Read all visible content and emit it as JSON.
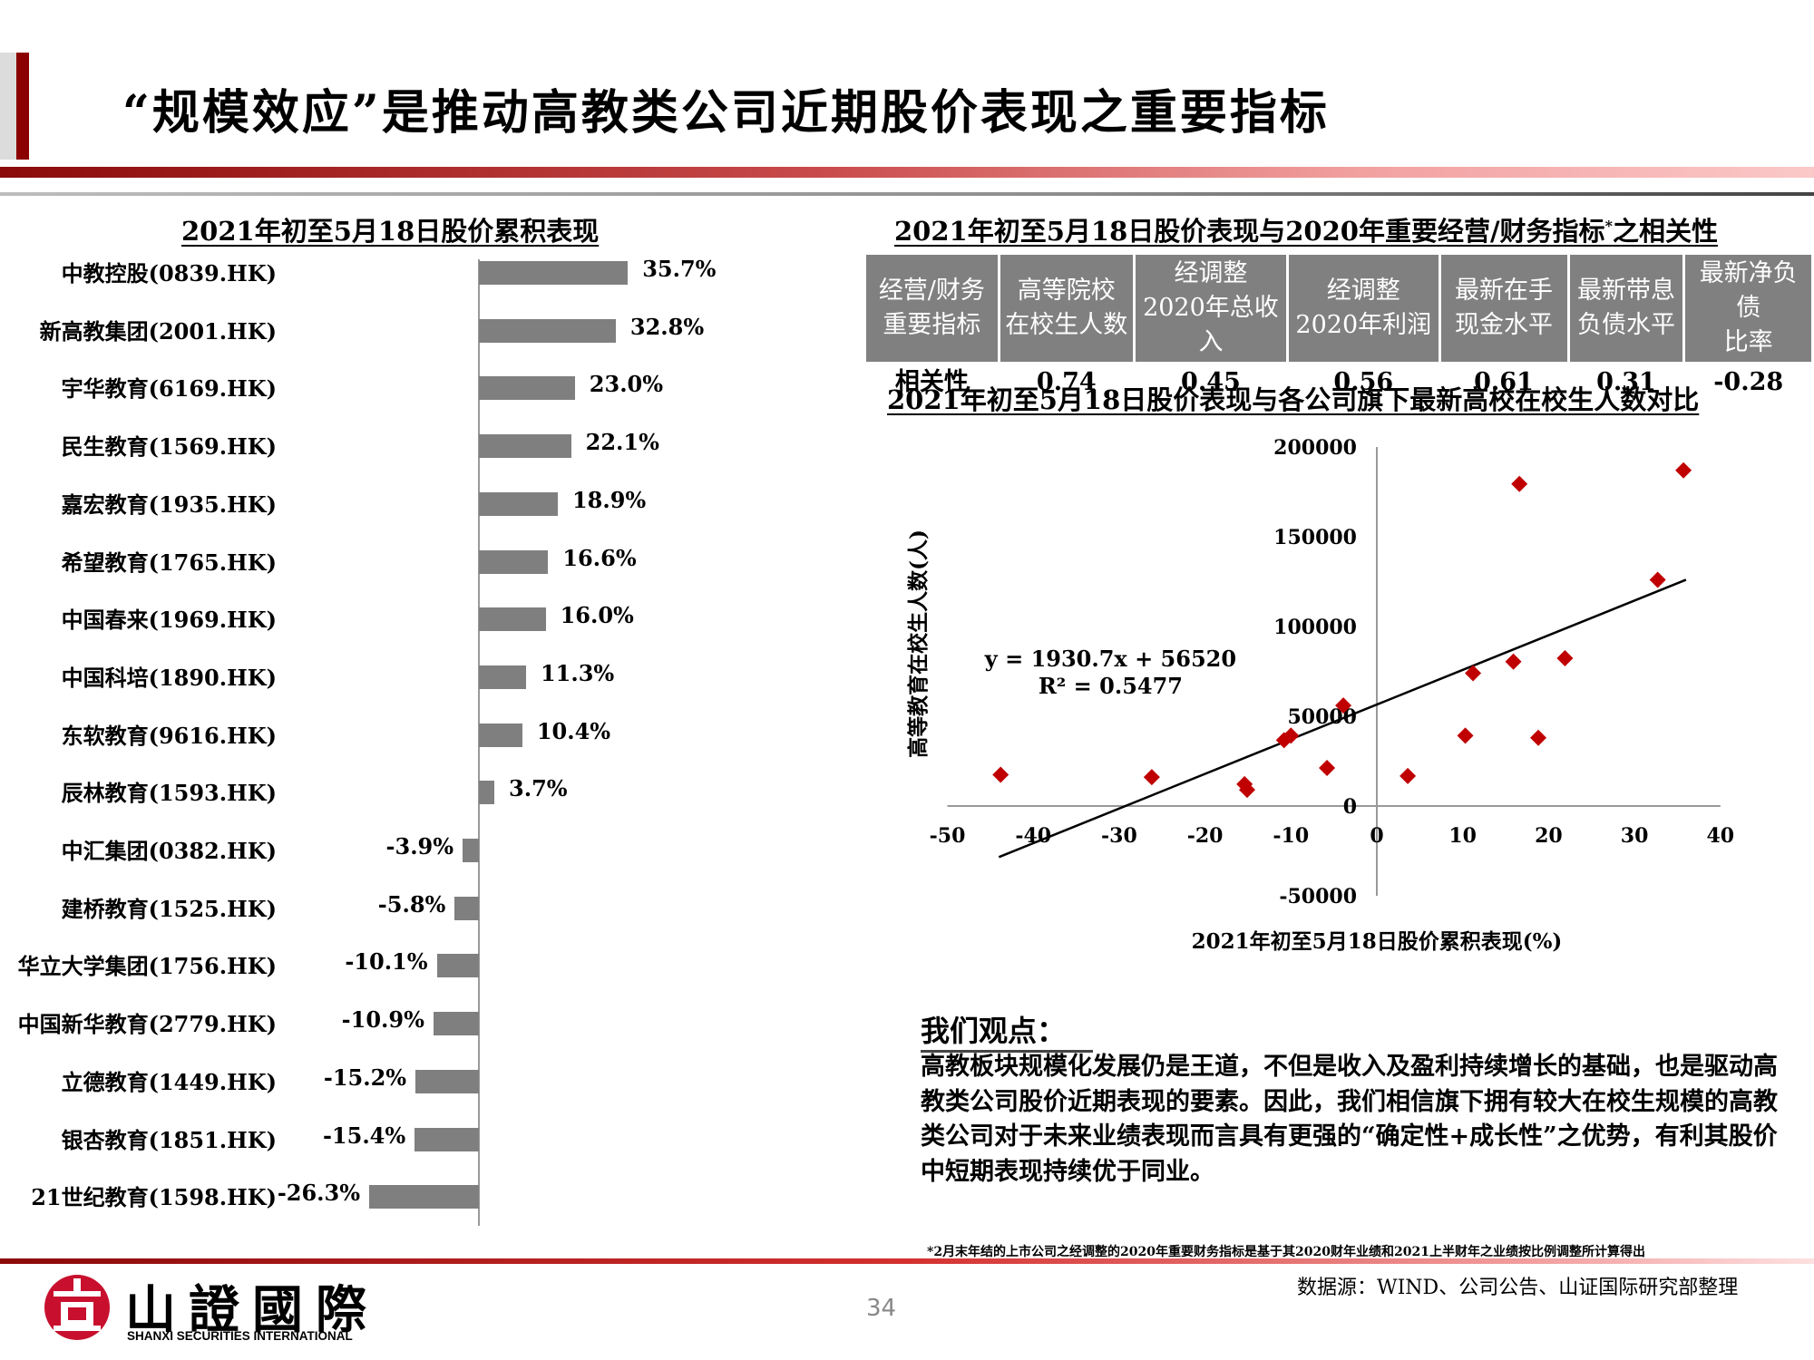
{
  "page": {
    "title": "“规模效应”是推动高教类公司近期股价表现之重要指标",
    "page_number": "34",
    "footnote": "*2月末年结的上市公司之经调整的2020年重要财务指标是基于其2020财年业绩和2021上半财年之业绩按比例调整所计算得出",
    "source": "数据源：WIND、公司公告、山证国际研究部整理",
    "logo": {
      "cn": "山證國際",
      "en": "SHANXI SECURITIES INTERNATIONAL"
    },
    "colors": {
      "brand_red": "#8b0000",
      "bar_grey": "#7f7f7f",
      "marker_red": "#c00000",
      "header_grey": "#808080"
    }
  },
  "correlation_table": {
    "title": "2021年初至5月18日股价表现与2020年重要经营/财务指标*之相关性",
    "headers": [
      [
        "经营/财务",
        "重要指标"
      ],
      [
        "高等院校",
        "在校生人数"
      ],
      [
        "经调整",
        "2020年总收入"
      ],
      [
        "经调整",
        "2020年利润"
      ],
      [
        "最新在手",
        "现金水平"
      ],
      [
        "最新带息",
        "负债水平"
      ],
      [
        "最新净负债",
        "比率"
      ]
    ],
    "row_label": "相关性",
    "values": [
      "0.74",
      "0.45",
      "0.56",
      "0.61",
      "0.31",
      "-0.28"
    ]
  },
  "opinion": {
    "title": "我们观点：",
    "body": "高教板块规模化发展仍是王道，不但是收入及盈利持续增长的基础，也是驱动高教类公司股价近期表现的要素。因此，我们相信旗下拥有较大在校生规模的高教类公司对于未来业绩表现而言具有更强的“确定性+成长性”之优势，有利其股价中短期表现持续优于同业。"
  },
  "chart_data": [
    {
      "type": "bar",
      "orientation": "horizontal",
      "title": "2021年初至5月18日股价累积表现",
      "categories": [
        "中教控股(0839.HK)",
        "新高教集团(2001.HK)",
        "宇华教育(6169.HK)",
        "民生教育(1569.HK)",
        "嘉宏教育(1935.HK)",
        "希望教育(1765.HK)",
        "中国春来(1969.HK)",
        "中国科培(1890.HK)",
        "东软教育(9616.HK)",
        "辰林教育(1593.HK)",
        "中汇集团(0382.HK)",
        "建桥教育(1525.HK)",
        "华立大学集团(1756.HK)",
        "中国新华教育(2779.HK)",
        "立德教育(1449.HK)",
        "银杏教育(1851.HK)",
        "21世纪教育(1598.HK)"
      ],
      "values": [
        35.7,
        32.8,
        23.0,
        22.1,
        18.9,
        16.6,
        16.0,
        11.3,
        10.4,
        3.7,
        -3.9,
        -5.8,
        -10.1,
        -10.9,
        -15.2,
        -15.4,
        -26.3
      ],
      "labels": [
        "35.7%",
        "32.8%",
        "23.0%",
        "22.1%",
        "18.9%",
        "16.6%",
        "16.0%",
        "11.3%",
        "10.4%",
        "3.7%",
        "-3.9%",
        "-5.8%",
        "-10.1%",
        "-10.9%",
        "-15.2%",
        "-15.4%",
        "-26.3%"
      ],
      "unit": "%",
      "color": "#7f7f7f"
    },
    {
      "type": "scatter",
      "title": "2021年初至5月18日股价表现与各公司旗下最新高校在校生人数对比",
      "xlabel": "2021年初至5月18日股价累积表现(%)",
      "ylabel": "高等教育在校生人数(人)",
      "xlim": [
        -50,
        40
      ],
      "ylim": [
        -50000,
        200000
      ],
      "xticks": [
        "-50",
        "-40",
        "-30",
        "-20",
        "-10",
        "0",
        "10",
        "20",
        "30",
        "40"
      ],
      "yticks": [
        "-50000",
        "0",
        "50000",
        "100000",
        "150000",
        "200000"
      ],
      "marker": "diamond",
      "marker_color": "#c00000",
      "points": [
        {
          "x": -43.8,
          "y": 17400
        },
        {
          "x": -26.2,
          "y": 16100
        },
        {
          "x": -15.4,
          "y": 12200
        },
        {
          "x": -15.1,
          "y": 9000
        },
        {
          "x": -10.8,
          "y": 36700
        },
        {
          "x": -10.0,
          "y": 39200
        },
        {
          "x": -5.8,
          "y": 21200
        },
        {
          "x": -3.9,
          "y": 56000
        },
        {
          "x": 3.6,
          "y": 16700
        },
        {
          "x": 10.3,
          "y": 39200
        },
        {
          "x": 11.2,
          "y": 74000
        },
        {
          "x": 15.9,
          "y": 80400
        },
        {
          "x": 16.6,
          "y": 179400
        },
        {
          "x": 18.8,
          "y": 38000
        },
        {
          "x": 21.9,
          "y": 82300
        },
        {
          "x": 32.7,
          "y": 126000
        },
        {
          "x": 35.7,
          "y": 187000
        }
      ],
      "trendline": {
        "equation": "y = 1930.7x + 56520",
        "r_squared": "R² = 0.5477",
        "slope": 1930.7,
        "intercept": 56520,
        "x_range": [
          -44,
          36
        ]
      }
    }
  ]
}
